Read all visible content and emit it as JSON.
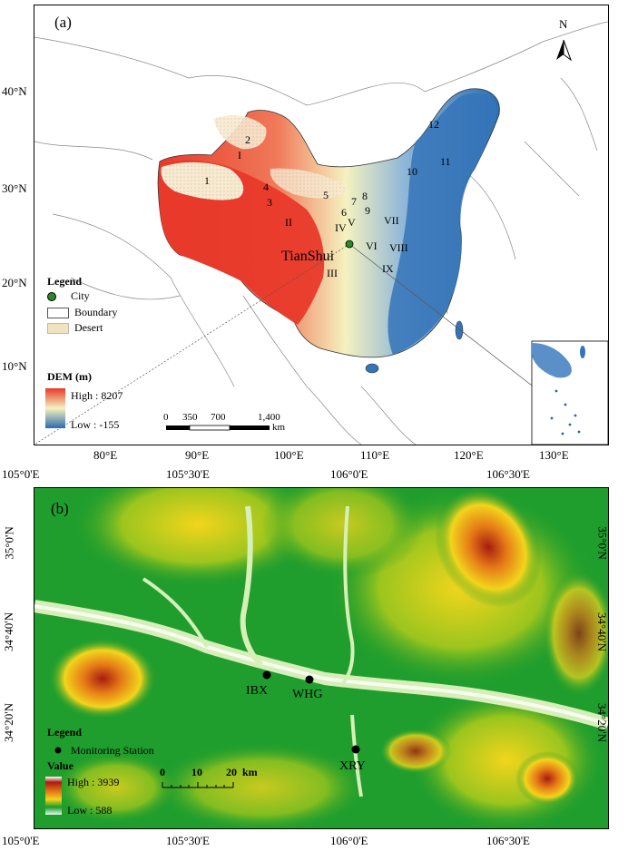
{
  "panel_a": {
    "label": "(a)",
    "north": "N",
    "city": "TianShui",
    "lat_labels": [
      "40°N",
      "30°N",
      "20°N",
      "10°N"
    ],
    "lon_labels": [
      "80°E",
      "90°E",
      "100°E",
      "110°E",
      "120°E",
      "130°E"
    ],
    "regions_roman": [
      "I",
      "II",
      "III",
      "IV",
      "V",
      "VI",
      "VII",
      "VIII",
      "IX"
    ],
    "regions_num": [
      "1",
      "2",
      "3",
      "4",
      "5",
      "6",
      "7",
      "8",
      "9",
      "10",
      "11",
      "12"
    ],
    "legend": {
      "title": "Legend",
      "city": "City",
      "boundary": "Boundary",
      "desert": "Desert",
      "dem_title": "DEM (m)",
      "high": "High : 8207",
      "low": "Low : -155"
    },
    "scale": {
      "ticks": [
        "0",
        "350",
        "700",
        "1,400"
      ],
      "unit": "km"
    },
    "colors": {
      "high": "#e8392a",
      "mid": "#f5f2c0",
      "low": "#2b6cb0",
      "desert": "#f3e2c0"
    }
  },
  "panel_b": {
    "label": "(b)",
    "top_lon": [
      "105°0'E",
      "105°30'E",
      "106°0'E",
      "106°30'E"
    ],
    "bottom_lon": [
      "105°0'E",
      "105°30'E",
      "106°0'E",
      "106°30'E"
    ],
    "lat_labels": [
      "35°0'N",
      "34°40'N",
      "34°20'N"
    ],
    "stations": [
      "IBX",
      "WHG",
      "XRY"
    ],
    "legend": {
      "title": "Legend",
      "station": "Monitoring Station",
      "value_title": "Value",
      "high": "High : 3939",
      "low": "Low : 588"
    },
    "scale": {
      "ticks": [
        "0",
        "10",
        "20"
      ],
      "unit": "km"
    },
    "colors": {
      "low": "#e8f8f0",
      "green": "#1a9a2a",
      "yellow": "#f2d51c",
      "orange": "#e67b17",
      "red": "#a81c10"
    }
  }
}
